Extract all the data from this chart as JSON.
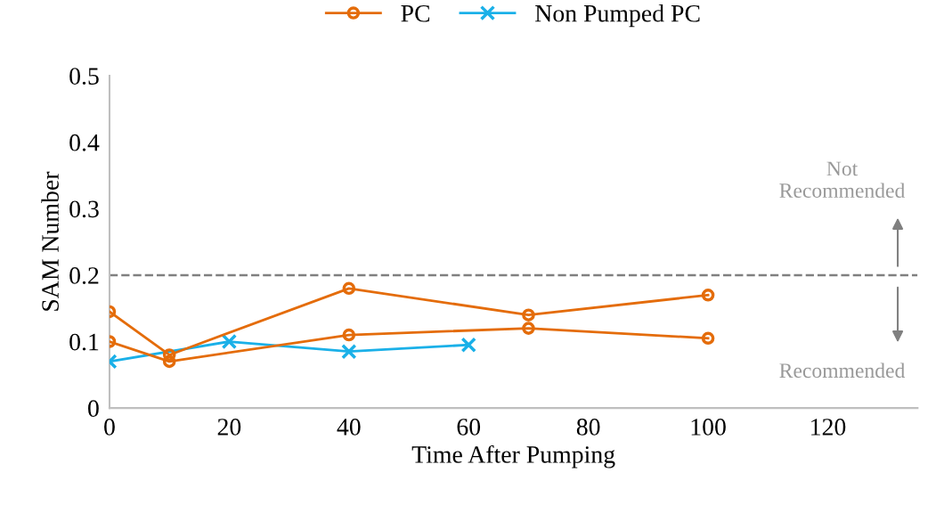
{
  "chart_data": {
    "type": "line",
    "xlabel": "Time After Pumping",
    "ylabel": "SAM Number",
    "series": [
      {
        "name": "PC",
        "color": "#e46c0a",
        "x": [
          0,
          10,
          40,
          70,
          100
        ],
        "values": [
          0.145,
          0.08,
          0.18,
          0.14,
          0.17
        ],
        "marker": "circle"
      },
      {
        "color": "#e46c0a",
        "x": [
          0,
          10,
          40,
          70,
          100
        ],
        "values": [
          0.1,
          0.07,
          0.11,
          0.12,
          0.105
        ],
        "marker": "circle"
      },
      {
        "name": "Non Pumped PC",
        "color": "#1ab0e8",
        "x": [
          0,
          20,
          40,
          60
        ],
        "values": [
          0.07,
          0.1,
          0.085,
          0.095
        ],
        "marker": "cross"
      }
    ],
    "xlim": [
      0,
      135
    ],
    "xticks": [
      0,
      20,
      40,
      60,
      80,
      100,
      120
    ],
    "ylim": [
      0,
      0.5
    ],
    "yticks": [
      0,
      0.1,
      0.2,
      0.3,
      0.4,
      0.5
    ],
    "ref_lines": [
      {
        "axis": "y",
        "value": 0.2,
        "color": "#808080",
        "line_style": "dashed"
      }
    ],
    "annotations": [
      "Not\nRecommended",
      "Recommended"
    ],
    "grid": false,
    "legend": "top"
  }
}
